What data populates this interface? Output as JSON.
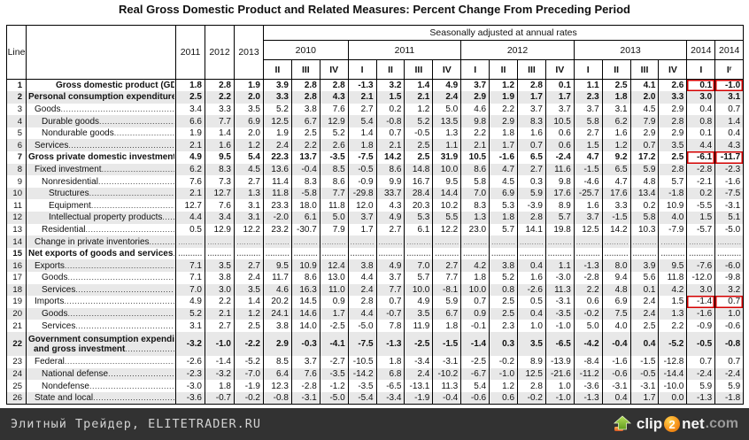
{
  "title": "Real Gross Domestic Product and Related Measures: Percent Change From Preceding Period",
  "header": {
    "line_label": "Line",
    "sa_label": "Seasonally adjusted at annual rates",
    "annual_years": [
      "2011",
      "2012",
      "2013"
    ],
    "year_groups": [
      {
        "label": "2010",
        "span": 3
      },
      {
        "label": "2011",
        "span": 4
      },
      {
        "label": "2012",
        "span": 4
      },
      {
        "label": "2013",
        "span": 4
      },
      {
        "label": "2014",
        "span": 1
      },
      {
        "label": "2014",
        "span": 1
      }
    ],
    "quarters": [
      "II",
      "III",
      "IV",
      "I",
      "II",
      "III",
      "IV",
      "I",
      "II",
      "III",
      "IV",
      "I",
      "II",
      "III",
      "IV",
      "I",
      "Iʳ"
    ]
  },
  "rows": [
    {
      "line": "1",
      "label": "Gross domestic product (GDP)",
      "indent": "igdp",
      "bold": true,
      "highlight": [
        18,
        19
      ],
      "values": [
        "1.8",
        "2.8",
        "1.9",
        "3.9",
        "2.8",
        "2.8",
        "-1.3",
        "3.2",
        "1.4",
        "4.9",
        "3.7",
        "1.2",
        "2.8",
        "0.1",
        "1.1",
        "2.5",
        "4.1",
        "2.6",
        "0.1",
        "-1.0"
      ]
    },
    {
      "line": "2",
      "label": "Personal consumption expenditures",
      "indent": "i0",
      "bold": true,
      "values": [
        "2.5",
        "2.2",
        "2.0",
        "3.3",
        "2.8",
        "4.3",
        "2.1",
        "1.5",
        "2.1",
        "2.4",
        "2.9",
        "1.9",
        "1.7",
        "1.7",
        "2.3",
        "1.8",
        "2.0",
        "3.3",
        "3.0",
        "3.1"
      ]
    },
    {
      "line": "3",
      "label": "Goods",
      "indent": "i1",
      "bold": false,
      "values": [
        "3.4",
        "3.3",
        "3.5",
        "5.2",
        "3.8",
        "7.6",
        "2.7",
        "0.2",
        "1.2",
        "5.0",
        "4.6",
        "2.2",
        "3.7",
        "3.7",
        "3.7",
        "3.1",
        "4.5",
        "2.9",
        "0.4",
        "0.7"
      ]
    },
    {
      "line": "4",
      "label": "Durable goods",
      "indent": "i2",
      "bold": false,
      "values": [
        "6.6",
        "7.7",
        "6.9",
        "12.5",
        "6.7",
        "12.9",
        "5.4",
        "-0.8",
        "5.2",
        "13.5",
        "9.8",
        "2.9",
        "8.3",
        "10.5",
        "5.8",
        "6.2",
        "7.9",
        "2.8",
        "0.8",
        "1.4"
      ]
    },
    {
      "line": "5",
      "label": "Nondurable goods",
      "indent": "i2",
      "bold": false,
      "values": [
        "1.9",
        "1.4",
        "2.0",
        "1.9",
        "2.5",
        "5.2",
        "1.4",
        "0.7",
        "-0.5",
        "1.3",
        "2.2",
        "1.8",
        "1.6",
        "0.6",
        "2.7",
        "1.6",
        "2.9",
        "2.9",
        "0.1",
        "0.4"
      ]
    },
    {
      "line": "6",
      "label": "Services",
      "indent": "i1",
      "bold": false,
      "values": [
        "2.1",
        "1.6",
        "1.2",
        "2.4",
        "2.2",
        "2.6",
        "1.8",
        "2.1",
        "2.5",
        "1.1",
        "2.1",
        "1.7",
        "0.7",
        "0.6",
        "1.5",
        "1.2",
        "0.7",
        "3.5",
        "4.4",
        "4.3"
      ]
    },
    {
      "line": "7",
      "label": "Gross private domestic investment",
      "indent": "i0",
      "bold": true,
      "highlight": [
        18,
        19
      ],
      "values": [
        "4.9",
        "9.5",
        "5.4",
        "22.3",
        "13.7",
        "-3.5",
        "-7.5",
        "14.2",
        "2.5",
        "31.9",
        "10.5",
        "-1.6",
        "6.5",
        "-2.4",
        "4.7",
        "9.2",
        "17.2",
        "2.5",
        "-6.1",
        "-11.7"
      ]
    },
    {
      "line": "8",
      "label": "Fixed investment",
      "indent": "i1",
      "bold": false,
      "values": [
        "6.2",
        "8.3",
        "4.5",
        "13.6",
        "-0.4",
        "8.5",
        "-0.5",
        "8.6",
        "14.8",
        "10.0",
        "8.6",
        "4.7",
        "2.7",
        "11.6",
        "-1.5",
        "6.5",
        "5.9",
        "2.8",
        "-2.8",
        "-2.3"
      ]
    },
    {
      "line": "9",
      "label": "Nonresidential",
      "indent": "i2",
      "bold": false,
      "values": [
        "7.6",
        "7.3",
        "2.7",
        "11.4",
        "8.3",
        "8.6",
        "-0.9",
        "9.9",
        "16.7",
        "9.5",
        "5.8",
        "4.5",
        "0.3",
        "9.8",
        "-4.6",
        "4.7",
        "4.8",
        "5.7",
        "-2.1",
        "-1.6"
      ]
    },
    {
      "line": "10",
      "label": "Structures",
      "indent": "i3",
      "bold": false,
      "values": [
        "2.1",
        "12.7",
        "1.3",
        "11.8",
        "-5.8",
        "7.7",
        "-29.8",
        "33.7",
        "28.4",
        "14.4",
        "7.0",
        "6.9",
        "5.9",
        "17.6",
        "-25.7",
        "17.6",
        "13.4",
        "-1.8",
        "0.2",
        "-7.5"
      ]
    },
    {
      "line": "11",
      "label": "Equipment",
      "indent": "i3",
      "bold": false,
      "values": [
        "12.7",
        "7.6",
        "3.1",
        "23.3",
        "18.0",
        "11.8",
        "12.0",
        "4.3",
        "20.3",
        "10.2",
        "8.3",
        "5.3",
        "-3.9",
        "8.9",
        "1.6",
        "3.3",
        "0.2",
        "10.9",
        "-5.5",
        "-3.1"
      ]
    },
    {
      "line": "12",
      "label": "Intellectual property products",
      "indent": "i3",
      "bold": false,
      "values": [
        "4.4",
        "3.4",
        "3.1",
        "-2.0",
        "6.1",
        "5.0",
        "3.7",
        "4.9",
        "5.3",
        "5.5",
        "1.3",
        "1.8",
        "2.8",
        "5.7",
        "3.7",
        "-1.5",
        "5.8",
        "4.0",
        "1.5",
        "5.1"
      ]
    },
    {
      "line": "13",
      "label": "Residential",
      "indent": "i2",
      "bold": false,
      "values": [
        "0.5",
        "12.9",
        "12.2",
        "23.2",
        "-30.7",
        "7.9",
        "1.7",
        "2.7",
        "6.1",
        "12.2",
        "23.0",
        "5.7",
        "14.1",
        "19.8",
        "12.5",
        "14.2",
        "10.3",
        "-7.9",
        "-5.7",
        "-5.0"
      ]
    },
    {
      "line": "14",
      "label": "Change in private inventories",
      "indent": "i1",
      "bold": false,
      "dots": true,
      "values": [
        "..........",
        "..........",
        "..........",
        "..........",
        "..........",
        "..........",
        "..........",
        "..........",
        "..........",
        "..........",
        "..........",
        "..........",
        "..........",
        "..........",
        "..........",
        "..........",
        "..........",
        "..........",
        "..........",
        ".........."
      ]
    },
    {
      "line": "15",
      "label": "Net exports of goods and services",
      "indent": "i0",
      "bold": true,
      "dots": true,
      "values": [
        "..........",
        "..........",
        "..........",
        "..........",
        "..........",
        "..........",
        "..........",
        "..........",
        "..........",
        "..........",
        "..........",
        "..........",
        "..........",
        "..........",
        "..........",
        "..........",
        "..........",
        "..........",
        "..........",
        ".........."
      ]
    },
    {
      "line": "16",
      "label": "Exports",
      "indent": "i1",
      "bold": false,
      "values": [
        "7.1",
        "3.5",
        "2.7",
        "9.5",
        "10.9",
        "12.4",
        "3.8",
        "4.9",
        "7.0",
        "2.7",
        "4.2",
        "3.8",
        "0.4",
        "1.1",
        "-1.3",
        "8.0",
        "3.9",
        "9.5",
        "-7.6",
        "-6.0"
      ]
    },
    {
      "line": "17",
      "label": "Goods",
      "indent": "i2",
      "bold": false,
      "values": [
        "7.1",
        "3.8",
        "2.4",
        "11.7",
        "8.6",
        "13.0",
        "4.4",
        "3.7",
        "5.7",
        "7.7",
        "1.8",
        "5.2",
        "1.6",
        "-3.0",
        "-2.8",
        "9.4",
        "5.6",
        "11.8",
        "-12.0",
        "-9.8"
      ]
    },
    {
      "line": "18",
      "label": "Services",
      "indent": "i2",
      "bold": false,
      "values": [
        "7.0",
        "3.0",
        "3.5",
        "4.6",
        "16.3",
        "11.0",
        "2.4",
        "7.7",
        "10.0",
        "-8.1",
        "10.0",
        "0.8",
        "-2.6",
        "11.3",
        "2.2",
        "4.8",
        "0.1",
        "4.2",
        "3.0",
        "3.2"
      ]
    },
    {
      "line": "19",
      "label": "Imports",
      "indent": "i1",
      "bold": false,
      "highlight": [
        18,
        19
      ],
      "values": [
        "4.9",
        "2.2",
        "1.4",
        "20.2",
        "14.5",
        "0.9",
        "2.8",
        "0.7",
        "4.9",
        "5.9",
        "0.7",
        "2.5",
        "0.5",
        "-3.1",
        "0.6",
        "6.9",
        "2.4",
        "1.5",
        "-1.4",
        "0.7"
      ]
    },
    {
      "line": "20",
      "label": "Goods",
      "indent": "i2",
      "bold": false,
      "values": [
        "5.2",
        "2.1",
        "1.2",
        "24.1",
        "14.6",
        "1.7",
        "4.4",
        "-0.7",
        "3.5",
        "6.7",
        "0.9",
        "2.5",
        "0.4",
        "-3.5",
        "-0.2",
        "7.5",
        "2.4",
        "1.3",
        "-1.6",
        "1.0"
      ]
    },
    {
      "line": "21",
      "label": "Services",
      "indent": "i2",
      "bold": false,
      "values": [
        "3.1",
        "2.7",
        "2.5",
        "3.8",
        "14.0",
        "-2.5",
        "-5.0",
        "7.8",
        "11.9",
        "1.8",
        "-0.1",
        "2.3",
        "1.0",
        "-1.0",
        "5.0",
        "4.0",
        "2.5",
        "2.2",
        "-0.9",
        "-0.6"
      ]
    },
    {
      "line": "22",
      "label": "Government consumption expenditures",
      "label2": "and gross investment",
      "indent": "i0",
      "bold": true,
      "tall": true,
      "values": [
        "-3.2",
        "-1.0",
        "-2.2",
        "2.9",
        "-0.3",
        "-4.1",
        "-7.5",
        "-1.3",
        "-2.5",
        "-1.5",
        "-1.4",
        "0.3",
        "3.5",
        "-6.5",
        "-4.2",
        "-0.4",
        "0.4",
        "-5.2",
        "-0.5",
        "-0.8"
      ]
    },
    {
      "line": "23",
      "label": "Federal",
      "indent": "i1",
      "bold": false,
      "values": [
        "-2.6",
        "-1.4",
        "-5.2",
        "8.5",
        "3.7",
        "-2.7",
        "-10.5",
        "1.8",
        "-3.4",
        "-3.1",
        "-2.5",
        "-0.2",
        "8.9",
        "-13.9",
        "-8.4",
        "-1.6",
        "-1.5",
        "-12.8",
        "0.7",
        "0.7"
      ]
    },
    {
      "line": "24",
      "label": "National defense",
      "indent": "i2",
      "bold": false,
      "values": [
        "-2.3",
        "-3.2",
        "-7.0",
        "6.4",
        "7.6",
        "-3.5",
        "-14.2",
        "6.8",
        "2.4",
        "-10.2",
        "-6.7",
        "-1.0",
        "12.5",
        "-21.6",
        "-11.2",
        "-0.6",
        "-0.5",
        "-14.4",
        "-2.4",
        "-2.4"
      ]
    },
    {
      "line": "25",
      "label": "Nondefense",
      "indent": "i2",
      "bold": false,
      "values": [
        "-3.0",
        "1.8",
        "-1.9",
        "12.3",
        "-2.8",
        "-1.2",
        "-3.5",
        "-6.5",
        "-13.1",
        "11.3",
        "5.4",
        "1.2",
        "2.8",
        "1.0",
        "-3.6",
        "-3.1",
        "-3.1",
        "-10.0",
        "5.9",
        "5.9"
      ]
    },
    {
      "line": "26",
      "label": "State and local",
      "indent": "i1",
      "bold": false,
      "values": [
        "-3.6",
        "-0.7",
        "-0.2",
        "-0.8",
        "-3.1",
        "-5.0",
        "-5.4",
        "-3.4",
        "-1.9",
        "-0.4",
        "-0.6",
        "0.6",
        "-0.2",
        "-1.0",
        "-1.3",
        "0.4",
        "1.7",
        "0.0",
        "-1.3",
        "-1.8"
      ]
    }
  ],
  "footer": {
    "left_text": "Элитный Трейдер, ELITETRADER.RU",
    "logo_clip": "clip",
    "logo_two": "2",
    "logo_net": "net",
    "logo_com": ".com"
  },
  "colors": {
    "highlight_box": "#d40000",
    "row_shade": "#e8e8e8",
    "footer_bg": "#323232",
    "logo_orange": "#f7941d",
    "logo_green": "#7cb82f"
  }
}
